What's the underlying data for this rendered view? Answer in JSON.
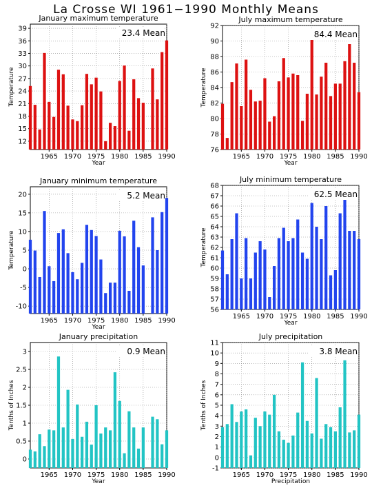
{
  "title": "La Crosse WI  1961−1990 Monthly Means",
  "colors": {
    "max": "#dd1111",
    "min": "#2244ee",
    "precip": "#22c4c4",
    "grid": "#8a8a8a"
  },
  "chart_data": [
    {
      "type": "bar",
      "title": "January maximum temperature",
      "mean_label": "23.4 Mean",
      "color": "max",
      "xlabel": "Year",
      "ylabel": "Temperature",
      "x": [
        1961,
        1962,
        1963,
        1964,
        1965,
        1966,
        1967,
        1968,
        1969,
        1970,
        1971,
        1972,
        1973,
        1974,
        1975,
        1976,
        1977,
        1978,
        1979,
        1980,
        1981,
        1982,
        1983,
        1984,
        1985,
        1986,
        1987,
        1988,
        1989,
        1990
      ],
      "values": [
        25.2,
        20.7,
        14.8,
        33.1,
        21.4,
        17.8,
        29.1,
        28.0,
        20.5,
        17.2,
        16.8,
        20.6,
        28.1,
        25.6,
        27.2,
        23.9,
        12.0,
        16.4,
        15.6,
        26.4,
        30.1,
        14.5,
        26.8,
        22.3,
        21.2,
        null,
        29.4,
        22.0,
        33.3,
        36.1
      ],
      "ylim": [
        10,
        40
      ],
      "yticks": [
        12,
        15,
        18,
        21,
        24,
        27,
        30,
        33,
        36,
        39
      ],
      "xticks": [
        1965,
        1970,
        1975,
        1980,
        1985,
        1990
      ]
    },
    {
      "type": "bar",
      "title": "July maximum temperature",
      "mean_label": "84.4 Mean",
      "color": "max",
      "xlabel": "Year",
      "ylabel": "Temperature",
      "x": [
        1961,
        1962,
        1963,
        1964,
        1965,
        1966,
        1967,
        1968,
        1969,
        1970,
        1971,
        1972,
        1973,
        1974,
        1975,
        1976,
        1977,
        1978,
        1979,
        1980,
        1981,
        1982,
        1983,
        1984,
        1985,
        1986,
        1987,
        1988,
        1989,
        1990
      ],
      "values": [
        81.9,
        77.5,
        84.7,
        87.1,
        81.6,
        87.6,
        83.7,
        82.2,
        82.3,
        85.2,
        79.6,
        80.3,
        84.8,
        87.8,
        85.3,
        85.8,
        85.6,
        79.7,
        83.2,
        90.2,
        83.1,
        85.4,
        87.2,
        82.9,
        84.5,
        84.5,
        87.4,
        89.6,
        87.2,
        83.4
      ],
      "ylim": [
        76,
        92
      ],
      "yticks": [
        76,
        78,
        80,
        82,
        84,
        86,
        88,
        90,
        92
      ],
      "xticks": [
        1965,
        1970,
        1975,
        1980,
        1985,
        1990
      ]
    },
    {
      "type": "bar",
      "title": "January minimum temperature",
      "mean_label": "5.2 Mean",
      "color": "min",
      "xlabel": "Year",
      "ylabel": "Temperature",
      "x": [
        1961,
        1962,
        1963,
        1964,
        1965,
        1966,
        1967,
        1968,
        1969,
        1970,
        1971,
        1972,
        1973,
        1974,
        1975,
        1976,
        1977,
        1978,
        1979,
        1980,
        1981,
        1982,
        1983,
        1984,
        1985,
        1986,
        1987,
        1988,
        1989,
        1990
      ],
      "values": [
        7.8,
        4.9,
        -2.2,
        15.5,
        0.7,
        -3.3,
        9.6,
        10.6,
        4.2,
        -0.9,
        -2.8,
        1.6,
        11.8,
        10.4,
        8.8,
        2.5,
        -6.5,
        -3.7,
        -3.7,
        10.2,
        8.7,
        -5.9,
        12.9,
        5.8,
        0.9,
        null,
        13.8,
        5.0,
        15.2,
        19.0
      ],
      "ylim": [
        -12,
        22
      ],
      "yticks": [
        -10,
        -5,
        0,
        5,
        10,
        15,
        20
      ],
      "xticks": [
        1965,
        1970,
        1975,
        1980,
        1985,
        1990
      ]
    },
    {
      "type": "bar",
      "title": "July minimum temperature",
      "mean_label": "62.5 Mean",
      "color": "min",
      "xlabel": "Year",
      "ylabel": "Temperature",
      "x": [
        1961,
        1962,
        1963,
        1964,
        1965,
        1966,
        1967,
        1968,
        1969,
        1970,
        1971,
        1972,
        1973,
        1974,
        1975,
        1976,
        1977,
        1978,
        1979,
        1980,
        1981,
        1982,
        1983,
        1984,
        1985,
        1986,
        1987,
        1988,
        1989,
        1990
      ],
      "values": [
        61.7,
        59.4,
        62.8,
        65.3,
        59.0,
        62.9,
        59.0,
        61.5,
        62.6,
        61.8,
        57.2,
        60.2,
        62.9,
        63.9,
        62.6,
        62.9,
        64.7,
        61.5,
        60.9,
        66.3,
        64.0,
        62.8,
        66.0,
        59.3,
        59.8,
        65.3,
        66.8,
        63.6,
        63.6,
        62.8
      ],
      "ylim": [
        56,
        68
      ],
      "yticks": [
        56,
        57,
        58,
        59,
        60,
        61,
        62,
        63,
        64,
        65,
        66,
        67,
        68
      ],
      "xticks": [
        1965,
        1970,
        1975,
        1980,
        1985,
        1990
      ]
    },
    {
      "type": "bar",
      "title": "January precipitation",
      "mean_label": "0.9 Mean",
      "color": "precip",
      "xlabel": "Year",
      "ylabel": "Tenths of Inches",
      "x": [
        1961,
        1962,
        1963,
        1964,
        1965,
        1966,
        1967,
        1968,
        1969,
        1970,
        1971,
        1972,
        1973,
        1974,
        1975,
        1976,
        1977,
        1978,
        1979,
        1980,
        1981,
        1982,
        1983,
        1984,
        1985,
        1986,
        1987,
        1988,
        1989,
        1990
      ],
      "values": [
        0.26,
        0.21,
        0.69,
        0.36,
        0.82,
        0.8,
        2.86,
        0.88,
        1.93,
        0.56,
        1.52,
        0.62,
        1.04,
        0.4,
        1.5,
        0.71,
        0.88,
        0.8,
        2.42,
        1.62,
        0.16,
        1.33,
        0.88,
        0.29,
        0.88,
        null,
        1.18,
        1.11,
        0.41,
        0.8
      ],
      "ylim": [
        -0.25,
        3.25
      ],
      "yticks": [
        0,
        0.5,
        1,
        1.5,
        2,
        2.5,
        3
      ],
      "xticks": [
        1965,
        1970,
        1975,
        1980,
        1985,
        1990
      ]
    },
    {
      "type": "bar",
      "title": "July precipitation",
      "mean_label": "3.8 Mean",
      "color": "precip",
      "xlabel": "Precipitation",
      "ylabel": "Tenths of Inches",
      "x": [
        1961,
        1962,
        1963,
        1964,
        1965,
        1966,
        1967,
        1968,
        1969,
        1970,
        1971,
        1972,
        1973,
        1974,
        1975,
        1976,
        1977,
        1978,
        1979,
        1980,
        1981,
        1982,
        1983,
        1984,
        1985,
        1986,
        1987,
        1988,
        1989,
        1990
      ],
      "values": [
        2.9,
        3.2,
        5.1,
        3.4,
        4.4,
        4.6,
        0.2,
        3.8,
        3.0,
        4.4,
        4.1,
        6.0,
        2.5,
        1.7,
        1.4,
        2.1,
        4.3,
        9.1,
        3.5,
        2.3,
        7.6,
        1.8,
        3.2,
        2.9,
        2.5,
        4.8,
        9.3,
        2.4,
        2.6,
        4.1
      ],
      "ylim": [
        -1,
        11
      ],
      "yticks": [
        -1,
        0,
        1,
        2,
        3,
        4,
        5,
        6,
        7,
        8,
        9,
        10,
        11
      ],
      "xticks": [
        1965,
        1970,
        1975,
        1980,
        1985,
        1990
      ]
    }
  ]
}
